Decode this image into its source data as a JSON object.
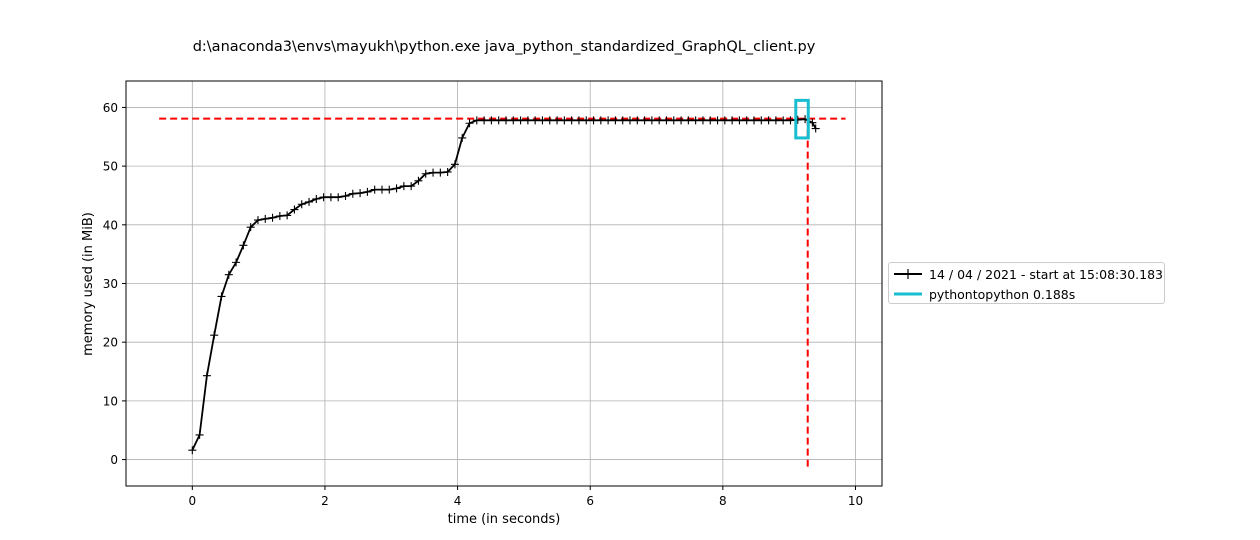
{
  "chart_data": {
    "type": "line",
    "title": "d:\\anaconda3\\envs\\mayukh\\python.exe java_python_standardized_GraphQL_client.py",
    "xlabel": "time (in seconds)",
    "ylabel": "memory used (in MiB)",
    "xlim": [
      -1.0,
      10.4
    ],
    "ylim": [
      -4.5,
      64.5
    ],
    "x_ticks": [
      0,
      2,
      4,
      6,
      8,
      10
    ],
    "y_ticks": [
      0,
      10,
      20,
      30,
      40,
      50,
      60
    ],
    "grid": true,
    "legend_placement": "outside-right",
    "series": [
      {
        "name": "14 / 04 / 2021 - start at 15:08:30.183",
        "color": "#000000",
        "marker": "+",
        "x": [
          0.0,
          0.11,
          0.22,
          0.33,
          0.44,
          0.55,
          0.66,
          0.77,
          0.88,
          0.99,
          1.1,
          1.21,
          1.32,
          1.43,
          1.54,
          1.65,
          1.76,
          1.87,
          1.98,
          2.09,
          2.2,
          2.31,
          2.42,
          2.53,
          2.64,
          2.75,
          2.86,
          2.97,
          3.08,
          3.19,
          3.3,
          3.41,
          3.52,
          3.63,
          3.74,
          3.85,
          3.96,
          4.07,
          4.18,
          4.29,
          4.4,
          4.51,
          4.62,
          4.73,
          4.84,
          4.95,
          5.06,
          5.17,
          5.28,
          5.39,
          5.5,
          5.61,
          5.72,
          5.83,
          5.94,
          6.05,
          6.16,
          6.27,
          6.38,
          6.49,
          6.6,
          6.71,
          6.82,
          6.93,
          7.04,
          7.15,
          7.26,
          7.37,
          7.48,
          7.59,
          7.7,
          7.81,
          7.92,
          8.03,
          8.14,
          8.25,
          8.36,
          8.47,
          8.58,
          8.69,
          8.8,
          8.91,
          9.02,
          9.13,
          9.24,
          9.35,
          9.4
        ],
        "y": [
          1.6,
          4.2,
          14.3,
          21.2,
          27.8,
          31.5,
          33.6,
          36.5,
          39.6,
          40.8,
          41.0,
          41.2,
          41.5,
          41.6,
          42.6,
          43.5,
          43.9,
          44.4,
          44.7,
          44.7,
          44.7,
          44.9,
          45.3,
          45.4,
          45.6,
          46.0,
          46.0,
          46.0,
          46.2,
          46.6,
          46.6,
          47.5,
          48.7,
          48.9,
          48.9,
          49.0,
          50.3,
          54.8,
          57.3,
          57.8,
          57.8,
          57.8,
          57.8,
          57.8,
          57.8,
          57.8,
          57.8,
          57.8,
          57.8,
          57.8,
          57.8,
          57.8,
          57.8,
          57.8,
          57.8,
          57.8,
          57.8,
          57.8,
          57.8,
          57.8,
          57.8,
          57.8,
          57.8,
          57.8,
          57.8,
          57.8,
          57.8,
          57.8,
          57.8,
          57.8,
          57.8,
          57.8,
          57.8,
          57.8,
          57.8,
          57.8,
          57.8,
          57.8,
          57.8,
          57.8,
          57.8,
          57.8,
          57.8,
          57.9,
          58.0,
          57.4,
          56.4
        ]
      },
      {
        "name": "pythontopython 0.188s",
        "color": "#17becf",
        "bracket": {
          "x_start": 9.1,
          "x_end": 9.288,
          "y_low": 54.8,
          "y_high": 61.2
        }
      }
    ],
    "reference_lines": [
      {
        "orientation": "horizontal",
        "y": 58.1,
        "x_from": -0.5,
        "x_to": 9.85,
        "color": "#ff0000",
        "style": "dashed"
      },
      {
        "orientation": "vertical",
        "x": 9.28,
        "y_from": -1.2,
        "y_to": 58.1,
        "color": "#ff0000",
        "style": "dashed"
      }
    ]
  }
}
